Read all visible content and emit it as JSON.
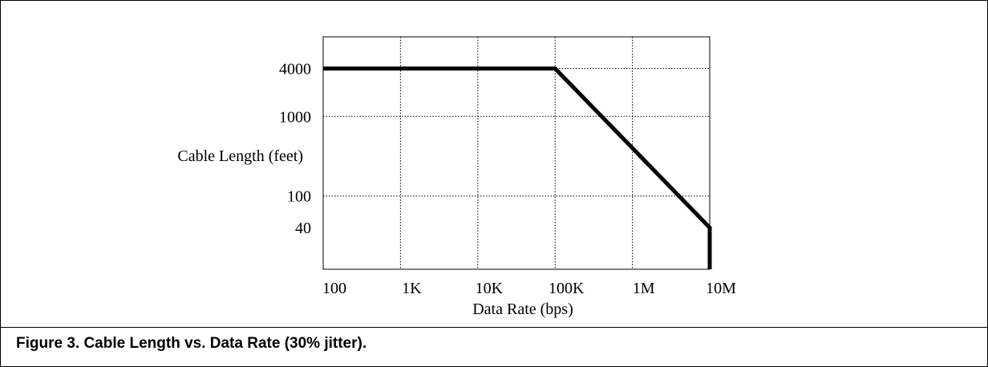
{
  "caption": "Figure 3. Cable Length vs. Data Rate (30% jitter).",
  "chart_data": {
    "type": "line",
    "xlabel": "Data Rate (bps)",
    "ylabel": "Cable Length (feet)",
    "x_scale": "log",
    "y_scale": "log",
    "x_ticks": [
      {
        "value": 100,
        "label": "100"
      },
      {
        "value": 1000,
        "label": "1K"
      },
      {
        "value": 10000,
        "label": "10K"
      },
      {
        "value": 100000,
        "label": "100K"
      },
      {
        "value": 1000000,
        "label": "1M"
      },
      {
        "value": 10000000,
        "label": "10M"
      }
    ],
    "y_ticks": [
      {
        "value": 4000,
        "label": "4000"
      },
      {
        "value": 1000,
        "label": "1000"
      },
      {
        "value": 100,
        "label": "100"
      },
      {
        "value": 40,
        "label": "40"
      }
    ],
    "xlim": [
      100,
      10000000
    ],
    "ylim": [
      12,
      10000
    ],
    "grid": true,
    "series": [
      {
        "x": [
          100,
          100000,
          10000000,
          10000000
        ],
        "y": [
          4000,
          4000,
          40,
          12
        ]
      }
    ]
  }
}
